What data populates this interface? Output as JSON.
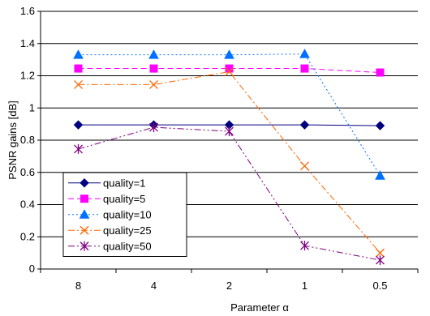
{
  "chart_data": {
    "type": "line",
    "title": "",
    "xlabel": "Parameter α",
    "ylabel": "PSNR gains [dB]",
    "categories": [
      "8",
      "4",
      "2",
      "1",
      "0.5"
    ],
    "ylim": [
      0,
      1.6
    ],
    "yticks": [
      "0",
      "0.2",
      "0.4",
      "0.6",
      "0.8",
      "1",
      "1.2",
      "1.4",
      "1.6"
    ],
    "grid": "horizontal",
    "legend_position": "bottom-left",
    "series": [
      {
        "name": "quality=1",
        "values": [
          0.895,
          0.895,
          0.895,
          0.895,
          0.89
        ],
        "color": "#00007f",
        "marker": "diamond",
        "dash": "solid"
      },
      {
        "name": "quality=5",
        "values": [
          1.245,
          1.245,
          1.245,
          1.245,
          1.22
        ],
        "color": "#ff00ff",
        "marker": "square",
        "dash": "dash"
      },
      {
        "name": "quality=10",
        "values": [
          1.33,
          1.33,
          1.33,
          1.335,
          0.58
        ],
        "color": "#0070ff",
        "marker": "triangle",
        "dash": "dot"
      },
      {
        "name": "quality=25",
        "values": [
          1.145,
          1.145,
          1.225,
          0.64,
          0.1
        ],
        "color": "#ff6600",
        "marker": "x",
        "dash": "dashdot"
      },
      {
        "name": "quality=50",
        "values": [
          0.745,
          0.88,
          0.855,
          0.145,
          0.055
        ],
        "color": "#800080",
        "marker": "star",
        "dash": "dashdotdot"
      }
    ]
  }
}
